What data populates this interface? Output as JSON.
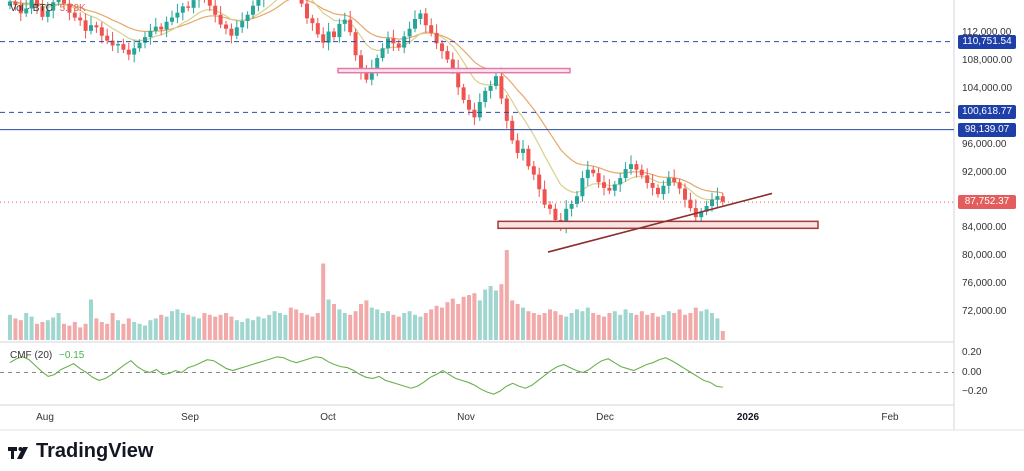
{
  "header": {
    "volume_label": "Vol · BTC",
    "volume_value": "5.78K"
  },
  "cmf": {
    "label": "CMF (20)",
    "value": "−0.15"
  },
  "brand": "TradingView",
  "price_markers": [
    {
      "value": "110,751.54",
      "price": 110751.54,
      "color": "#1e3ea8"
    },
    {
      "value": "100,618.77",
      "price": 100618.77,
      "color": "#1e3ea8"
    },
    {
      "value": "98,139.07",
      "price": 98139.07,
      "color": "#1e3ea8"
    },
    {
      "value": "87,752.37",
      "price": 87752.37,
      "color": "#e35d5d"
    }
  ],
  "y_ticks": [
    "112,000.00",
    "108,000.00",
    "104,000.00",
    "96,000.00",
    "92,000.00",
    "84,000.00",
    "80,000.00",
    "76,000.00",
    "72,000.00"
  ],
  "cmf_ticks": [
    "0.20",
    "0.00",
    "−0.20"
  ],
  "x_ticks": [
    {
      "label": "Aug",
      "bold": false
    },
    {
      "label": "Sep",
      "bold": false
    },
    {
      "label": "Oct",
      "bold": false
    },
    {
      "label": "Nov",
      "bold": false
    },
    {
      "label": "Dec",
      "bold": false
    },
    {
      "label": "2026",
      "bold": true
    },
    {
      "label": "Feb",
      "bold": false
    }
  ],
  "chart_data": {
    "type": "candlestick",
    "y_price_range": [
      68000,
      116000
    ],
    "y_cmf_range": [
      -0.28,
      0.28
    ],
    "horizontal_levels": [
      110751.54,
      100618.77,
      98139.07
    ],
    "zones": [
      {
        "from": 106300,
        "to": 106900,
        "color": "#e17aa8"
      },
      {
        "from": 84000,
        "to": 85000,
        "color": "#a13b3b"
      }
    ],
    "trendline": {
      "from_price": 80600,
      "to_price": 89000
    },
    "closes": [
      116500,
      116000,
      114800,
      115500,
      117000,
      115800,
      114300,
      115200,
      116400,
      117100,
      116200,
      114900,
      114200,
      113800,
      112300,
      113100,
      112800,
      111600,
      110900,
      110200,
      110400,
      109600,
      108900,
      109800,
      110600,
      111400,
      112300,
      112900,
      112500,
      113600,
      114200,
      114900,
      115800,
      115600,
      116700,
      117400,
      116800,
      115900,
      114600,
      113200,
      112600,
      111600,
      112800,
      113700,
      114600,
      115900,
      116800,
      117600,
      118300,
      119400,
      121100,
      121900,
      120300,
      118400,
      116200,
      114100,
      113400,
      111800,
      110600,
      112200,
      111400,
      113300,
      113900,
      112100,
      108800,
      106400,
      105300,
      106900,
      108400,
      109800,
      111200,
      110500,
      109900,
      111500,
      112600,
      114000,
      114800,
      113100,
      112000,
      110500,
      109400,
      108200,
      106900,
      104200,
      102400,
      101000,
      99900,
      102100,
      103700,
      104400,
      105800,
      102600,
      99400,
      96600,
      94800,
      95400,
      92900,
      91700,
      89600,
      87400,
      86800,
      85200,
      84100,
      86800,
      87500,
      88600,
      91200,
      92400,
      91900,
      90600,
      89800,
      89400,
      90300,
      91200,
      92500,
      93200,
      92400,
      91600,
      90500,
      89800,
      88900,
      90100,
      91200,
      90600,
      89700,
      88100,
      86900,
      85600,
      86400,
      87200,
      88100,
      88600,
      87800
    ],
    "volumes": [
      0.28,
      0.24,
      0.22,
      0.3,
      0.26,
      0.18,
      0.2,
      0.22,
      0.25,
      0.3,
      0.18,
      0.16,
      0.2,
      0.14,
      0.18,
      0.45,
      0.24,
      0.2,
      0.18,
      0.3,
      0.22,
      0.18,
      0.24,
      0.2,
      0.18,
      0.16,
      0.22,
      0.24,
      0.28,
      0.26,
      0.32,
      0.34,
      0.3,
      0.28,
      0.26,
      0.24,
      0.3,
      0.28,
      0.26,
      0.28,
      0.3,
      0.26,
      0.22,
      0.2,
      0.24,
      0.22,
      0.26,
      0.24,
      0.28,
      0.32,
      0.3,
      0.28,
      0.36,
      0.34,
      0.3,
      0.28,
      0.26,
      0.3,
      0.85,
      0.45,
      0.4,
      0.34,
      0.3,
      0.28,
      0.32,
      0.4,
      0.44,
      0.36,
      0.34,
      0.3,
      0.32,
      0.28,
      0.26,
      0.3,
      0.32,
      0.28,
      0.26,
      0.3,
      0.34,
      0.38,
      0.36,
      0.42,
      0.46,
      0.4,
      0.48,
      0.5,
      0.52,
      0.44,
      0.56,
      0.6,
      0.55,
      0.62,
      1.0,
      0.44,
      0.4,
      0.36,
      0.32,
      0.3,
      0.28,
      0.3,
      0.34,
      0.32,
      0.28,
      0.26,
      0.3,
      0.34,
      0.32,
      0.36,
      0.3,
      0.28,
      0.26,
      0.3,
      0.32,
      0.28,
      0.34,
      0.3,
      0.28,
      0.32,
      0.28,
      0.3,
      0.26,
      0.28,
      0.32,
      0.3,
      0.34,
      0.28,
      0.3,
      0.36,
      0.32,
      0.34,
      0.3,
      0.24,
      0.1
    ],
    "cmf": [
      0.1,
      0.14,
      0.16,
      0.13,
      0.07,
      0.01,
      -0.04,
      -0.02,
      0.03,
      0.06,
      0.09,
      0.04,
      0.0,
      -0.05,
      -0.08,
      -0.06,
      -0.02,
      0.03,
      0.08,
      0.12,
      0.06,
      0.02,
      0.0,
      0.03,
      -0.02,
      -0.01,
      0.02,
      0.0,
      0.05,
      0.07,
      0.1,
      0.13,
      0.12,
      0.08,
      0.04,
      0.02,
      0.04,
      0.06,
      0.08,
      0.1,
      0.12,
      0.14,
      0.16,
      0.15,
      0.12,
      0.1,
      0.12,
      0.14,
      0.16,
      0.15,
      0.11,
      0.08,
      0.06,
      0.05,
      0.02,
      -0.02,
      -0.05,
      -0.06,
      -0.04,
      -0.08,
      -0.1,
      -0.12,
      -0.14,
      -0.16,
      -0.14,
      -0.1,
      -0.05,
      -0.02,
      0.02,
      -0.02,
      -0.06,
      -0.08,
      -0.1,
      -0.13,
      -0.17,
      -0.2,
      -0.22,
      -0.19,
      -0.14,
      -0.11,
      -0.14,
      -0.16,
      -0.13,
      -0.08,
      -0.03,
      0.02,
      0.06,
      0.08,
      0.05,
      0.02,
      0.0,
      0.03,
      0.08,
      0.12,
      0.14,
      0.1,
      0.06,
      0.04,
      0.02,
      0.05,
      0.08,
      0.1,
      0.13,
      0.15,
      0.12,
      0.08,
      0.04,
      0.0,
      -0.04,
      -0.08,
      -0.1,
      -0.14,
      -0.15
    ]
  }
}
